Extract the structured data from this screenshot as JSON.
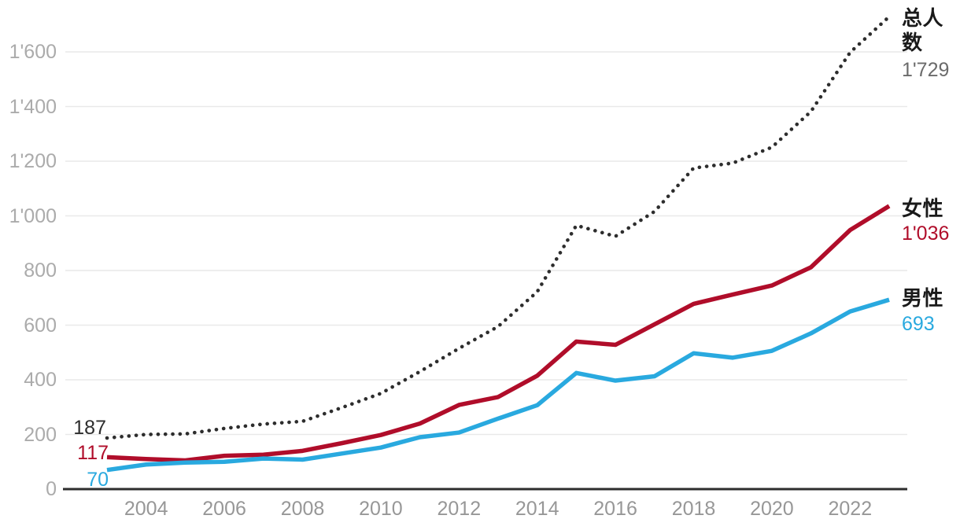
{
  "chart_data": {
    "type": "line",
    "title": "",
    "x": [
      2003,
      2004,
      2005,
      2006,
      2007,
      2008,
      2009,
      2010,
      2011,
      2012,
      2013,
      2014,
      2015,
      2016,
      2017,
      2018,
      2019,
      2020,
      2021,
      2022,
      2023
    ],
    "series": [
      {
        "id": "total",
        "name": "总人数",
        "color": "#2d2d2d",
        "style": "dotted",
        "values": [
          187,
          200,
          202,
          222,
          238,
          248,
          298,
          350,
          430,
          515,
          595,
          722,
          965,
          925,
          1016,
          1175,
          1193,
          1251,
          1382,
          1598,
          1729
        ],
        "start_label": "187",
        "end_label": "1'729"
      },
      {
        "id": "female",
        "name": "女性",
        "color": "#b00d2a",
        "style": "solid",
        "values": [
          117,
          110,
          105,
          122,
          126,
          140,
          168,
          198,
          240,
          308,
          337,
          415,
          540,
          528,
          603,
          678,
          712,
          745,
          812,
          948,
          1036
        ],
        "start_label": "117",
        "end_label": "1'036"
      },
      {
        "id": "male",
        "name": "男性",
        "color": "#29a9df",
        "style": "solid",
        "values": [
          70,
          90,
          97,
          100,
          112,
          108,
          130,
          152,
          190,
          207,
          258,
          307,
          425,
          397,
          413,
          497,
          481,
          506,
          570,
          650,
          693
        ],
        "start_label": "70",
        "end_label": "693"
      }
    ],
    "y_ticks": [
      {
        "value": 0,
        "label": "0"
      },
      {
        "value": 200,
        "label": "200"
      },
      {
        "value": 400,
        "label": "400"
      },
      {
        "value": 600,
        "label": "600"
      },
      {
        "value": 800,
        "label": "800"
      },
      {
        "value": 1000,
        "label": "1'000"
      },
      {
        "value": 1200,
        "label": "1'200"
      },
      {
        "value": 1400,
        "label": "1'400"
      },
      {
        "value": 1600,
        "label": "1'600"
      }
    ],
    "x_ticks": [
      {
        "value": 2004,
        "label": "2004"
      },
      {
        "value": 2006,
        "label": "2006"
      },
      {
        "value": 2008,
        "label": "2008"
      },
      {
        "value": 2010,
        "label": "2010"
      },
      {
        "value": 2012,
        "label": "2012"
      },
      {
        "value": 2014,
        "label": "2014"
      },
      {
        "value": 2016,
        "label": "2016"
      },
      {
        "value": 2018,
        "label": "2018"
      },
      {
        "value": 2020,
        "label": "2020"
      },
      {
        "value": 2022,
        "label": "2022"
      }
    ],
    "ylim": [
      0,
      1760
    ],
    "grid": true,
    "legend_position": "right"
  },
  "colors": {
    "grid": "#e9e9e9",
    "axis": "#2d2d2d",
    "total": "#2d2d2d",
    "female": "#b00d2a",
    "male": "#29a9df",
    "y_tick_text": "#ababab",
    "x_tick_text": "#979797",
    "legend_name_text": "#1a1a1a",
    "legend_total_value_text": "#6b6b6b"
  },
  "legend": {
    "total_name": "总人数",
    "total_value": "1'729",
    "female_name": "女性",
    "female_value": "1'036",
    "male_name": "男性",
    "male_value": "693"
  },
  "start_labels": {
    "total": "187",
    "female": "117",
    "male": "70"
  }
}
